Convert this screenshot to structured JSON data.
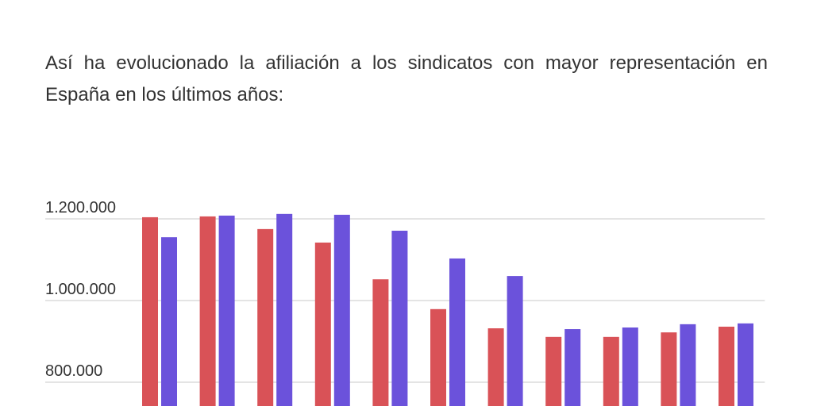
{
  "chart_data": {
    "type": "bar",
    "title": "Así ha evolucionado la afiliación a los sindicatos con mayor representación en España en los últimos años:",
    "series": [
      {
        "color": "#d95257",
        "values": [
          1204000,
          1206000,
          1175000,
          1142000,
          1052000,
          979000,
          932000,
          911000,
          911000,
          922000,
          936000
        ]
      },
      {
        "color": "#6b52db",
        "values": [
          1155000,
          1208000,
          1212000,
          1210000,
          1171000,
          1103000,
          1060000,
          930000,
          934000,
          942000,
          944000
        ]
      }
    ],
    "ylim": [
      740000,
      1260000
    ],
    "yticks": [
      {
        "value": 800000,
        "label": "800.000"
      },
      {
        "value": 1000000,
        "label": "1.000.000"
      },
      {
        "value": 1200000,
        "label": "1.200.000"
      }
    ],
    "grid": true
  }
}
